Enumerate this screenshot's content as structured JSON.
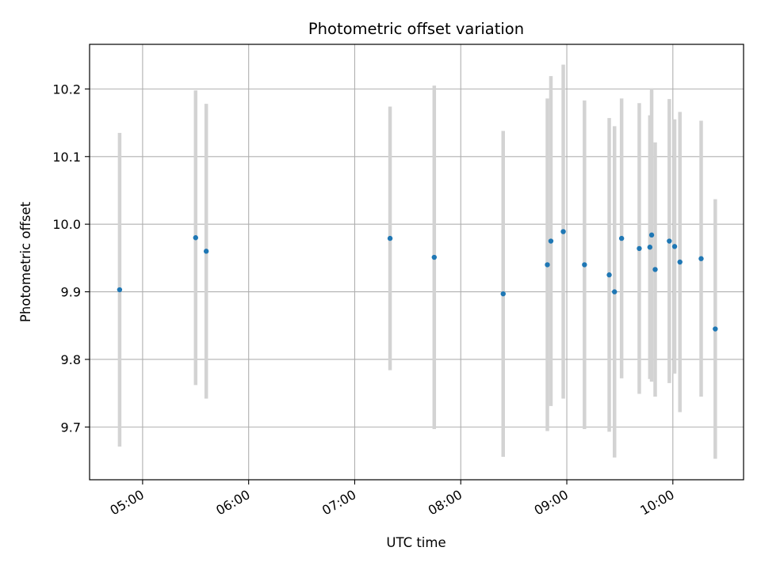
{
  "chart_data": {
    "type": "scatter",
    "title": "Photometric offset variation",
    "xlabel": "UTC time",
    "ylabel": "Photometric offset",
    "x_unit": "UTC time (HH:MM)",
    "xlim": [
      "04:30",
      "10:40"
    ],
    "ylim": [
      9.622,
      10.266
    ],
    "grid": true,
    "x_ticks": [
      "05:00",
      "06:00",
      "07:00",
      "08:00",
      "09:00",
      "10:00"
    ],
    "y_ticks": [
      9.7,
      9.8,
      9.9,
      10.0,
      10.1,
      10.2
    ],
    "colors": {
      "points": "#1f77b4",
      "errorbars": "#d3d3d3",
      "grid": "#b0b0b0"
    },
    "series": [
      {
        "points": [
          {
            "x": "04:47",
            "y": 9.903,
            "err": 0.232
          },
          {
            "x": "05:30",
            "y": 9.98,
            "err": 0.218
          },
          {
            "x": "05:36",
            "y": 9.96,
            "err": 0.218
          },
          {
            "x": "07:20",
            "y": 9.979,
            "err": 0.195
          },
          {
            "x": "07:45",
            "y": 9.951,
            "err": 0.254
          },
          {
            "x": "08:24",
            "y": 9.897,
            "err": 0.241
          },
          {
            "x": "08:49",
            "y": 9.94,
            "err": 0.246
          },
          {
            "x": "08:51",
            "y": 9.975,
            "err": 0.244
          },
          {
            "x": "08:58",
            "y": 9.989,
            "err": 0.247
          },
          {
            "x": "09:10",
            "y": 9.94,
            "err": 0.243
          },
          {
            "x": "09:24",
            "y": 9.925,
            "err": 0.232
          },
          {
            "x": "09:27",
            "y": 9.9,
            "err": 0.245
          },
          {
            "x": "09:31",
            "y": 9.979,
            "err": 0.207
          },
          {
            "x": "09:41",
            "y": 9.964,
            "err": 0.215
          },
          {
            "x": "09:47",
            "y": 9.966,
            "err": 0.195
          },
          {
            "x": "09:48",
            "y": 9.984,
            "err": 0.217
          },
          {
            "x": "09:50",
            "y": 9.933,
            "err": 0.188
          },
          {
            "x": "09:58",
            "y": 9.975,
            "err": 0.21
          },
          {
            "x": "10:01",
            "y": 9.967,
            "err": 0.188
          },
          {
            "x": "10:04",
            "y": 9.944,
            "err": 0.222
          },
          {
            "x": "10:16",
            "y": 9.949,
            "err": 0.204
          },
          {
            "x": "10:24",
            "y": 9.845,
            "err": 0.192
          }
        ]
      }
    ]
  }
}
